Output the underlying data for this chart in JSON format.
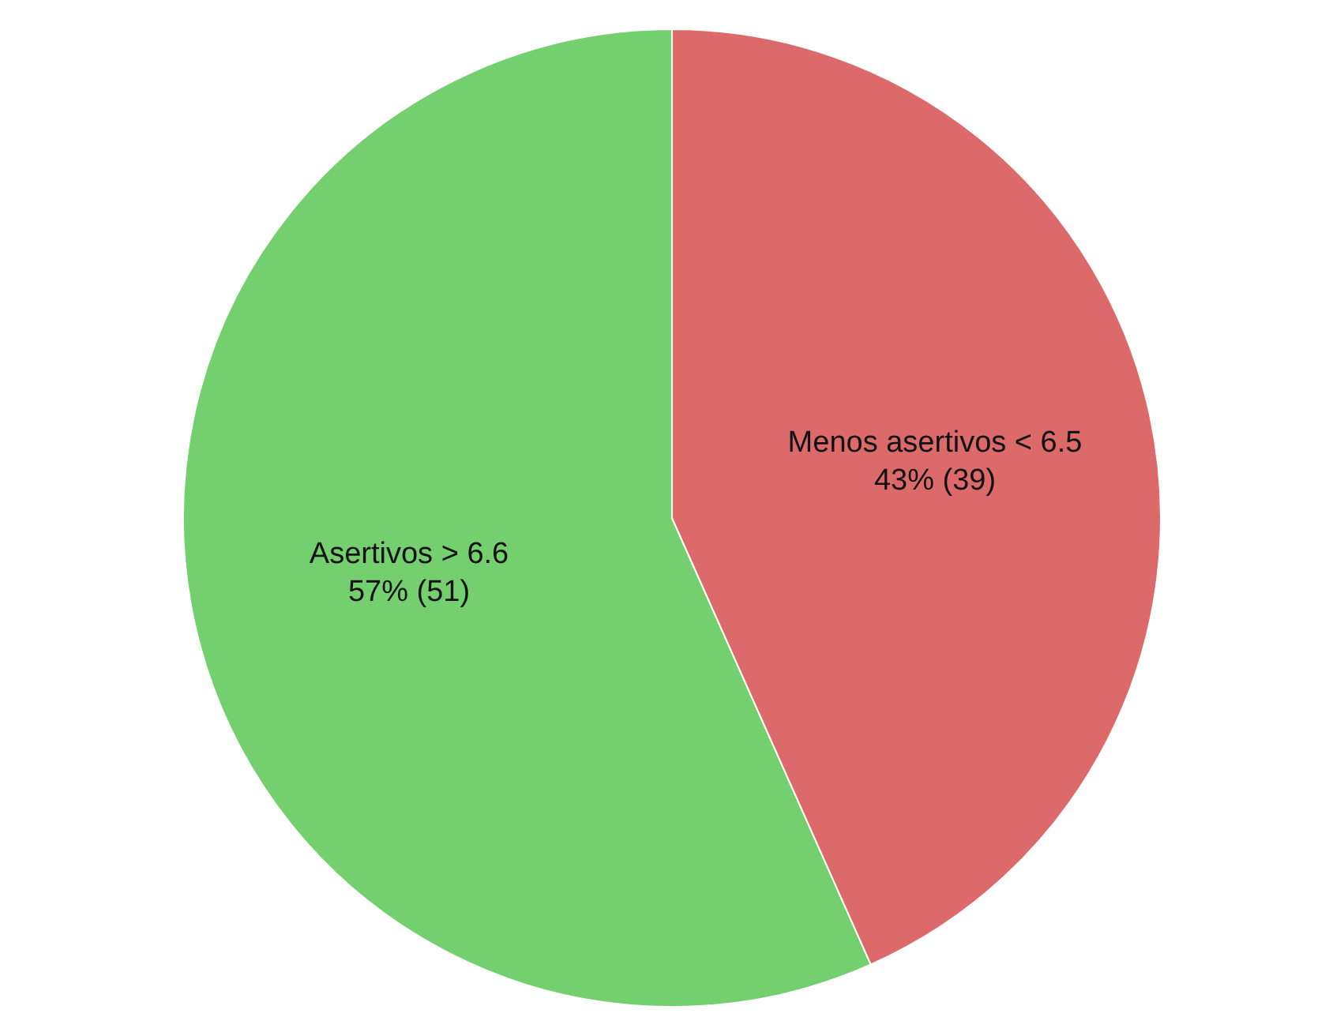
{
  "chart_data": {
    "type": "pie",
    "categories": [
      "Asertivos > 6.6",
      "Menos asertivos < 6.5"
    ],
    "values": [
      51,
      39
    ],
    "value_labels": [
      "57% (51)",
      "43% (39)"
    ],
    "colors": [
      "#74cf6e",
      "#dc6a6a"
    ],
    "legend": false
  }
}
